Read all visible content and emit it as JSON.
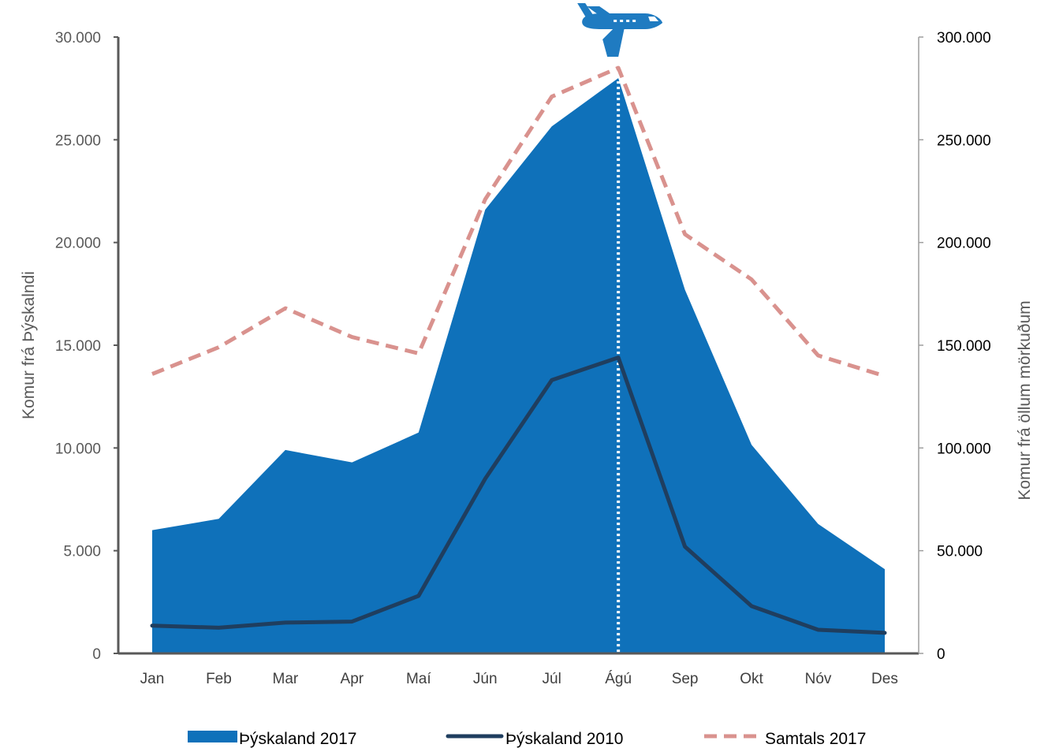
{
  "chart_data": {
    "type": "area",
    "categories": [
      "Jan",
      "Feb",
      "Mar",
      "Apr",
      "Maí",
      "Jún",
      "Júl",
      "Ágú",
      "Sep",
      "Okt",
      "Nóv",
      "Des"
    ],
    "series": [
      {
        "name": "Þýskaland 2017",
        "type": "area",
        "axis": "left",
        "color": "#0F71BA",
        "values": [
          6000,
          6550,
          9900,
          9300,
          10750,
          21600,
          25650,
          28000,
          17700,
          10150,
          6300,
          4100
        ]
      },
      {
        "name": "Þýskaland 2010",
        "type": "line",
        "axis": "left",
        "color": "#1F3E5F",
        "values": [
          1350,
          1250,
          1500,
          1550,
          2800,
          8500,
          13300,
          14400,
          5200,
          2300,
          1150,
          1000
        ]
      },
      {
        "name": "Samtals 2017",
        "type": "line-dashed",
        "axis": "right",
        "color": "#D9928E",
        "values": [
          136000,
          149000,
          168000,
          154000,
          146000,
          221000,
          271000,
          285000,
          204000,
          182000,
          145000,
          135000
        ]
      }
    ],
    "ylabel": "Komur frá Þýskalndi",
    "y2label": "Komur frá öllum mörkuðum",
    "ylim": [
      0,
      30000
    ],
    "y2lim": [
      0,
      300000
    ],
    "yticks": [
      "0",
      "5.000",
      "10.000",
      "15.000",
      "20.000",
      "25.000",
      "30.000"
    ],
    "y2ticks": [
      "0",
      "50.000",
      "100.000",
      "150.000",
      "200.000",
      "250.000",
      "300.000"
    ],
    "marker": {
      "category": "Ágú",
      "style": "dotted-vertical-line",
      "icon": "airplane-icon"
    },
    "grid": false,
    "legend": "bottom"
  }
}
